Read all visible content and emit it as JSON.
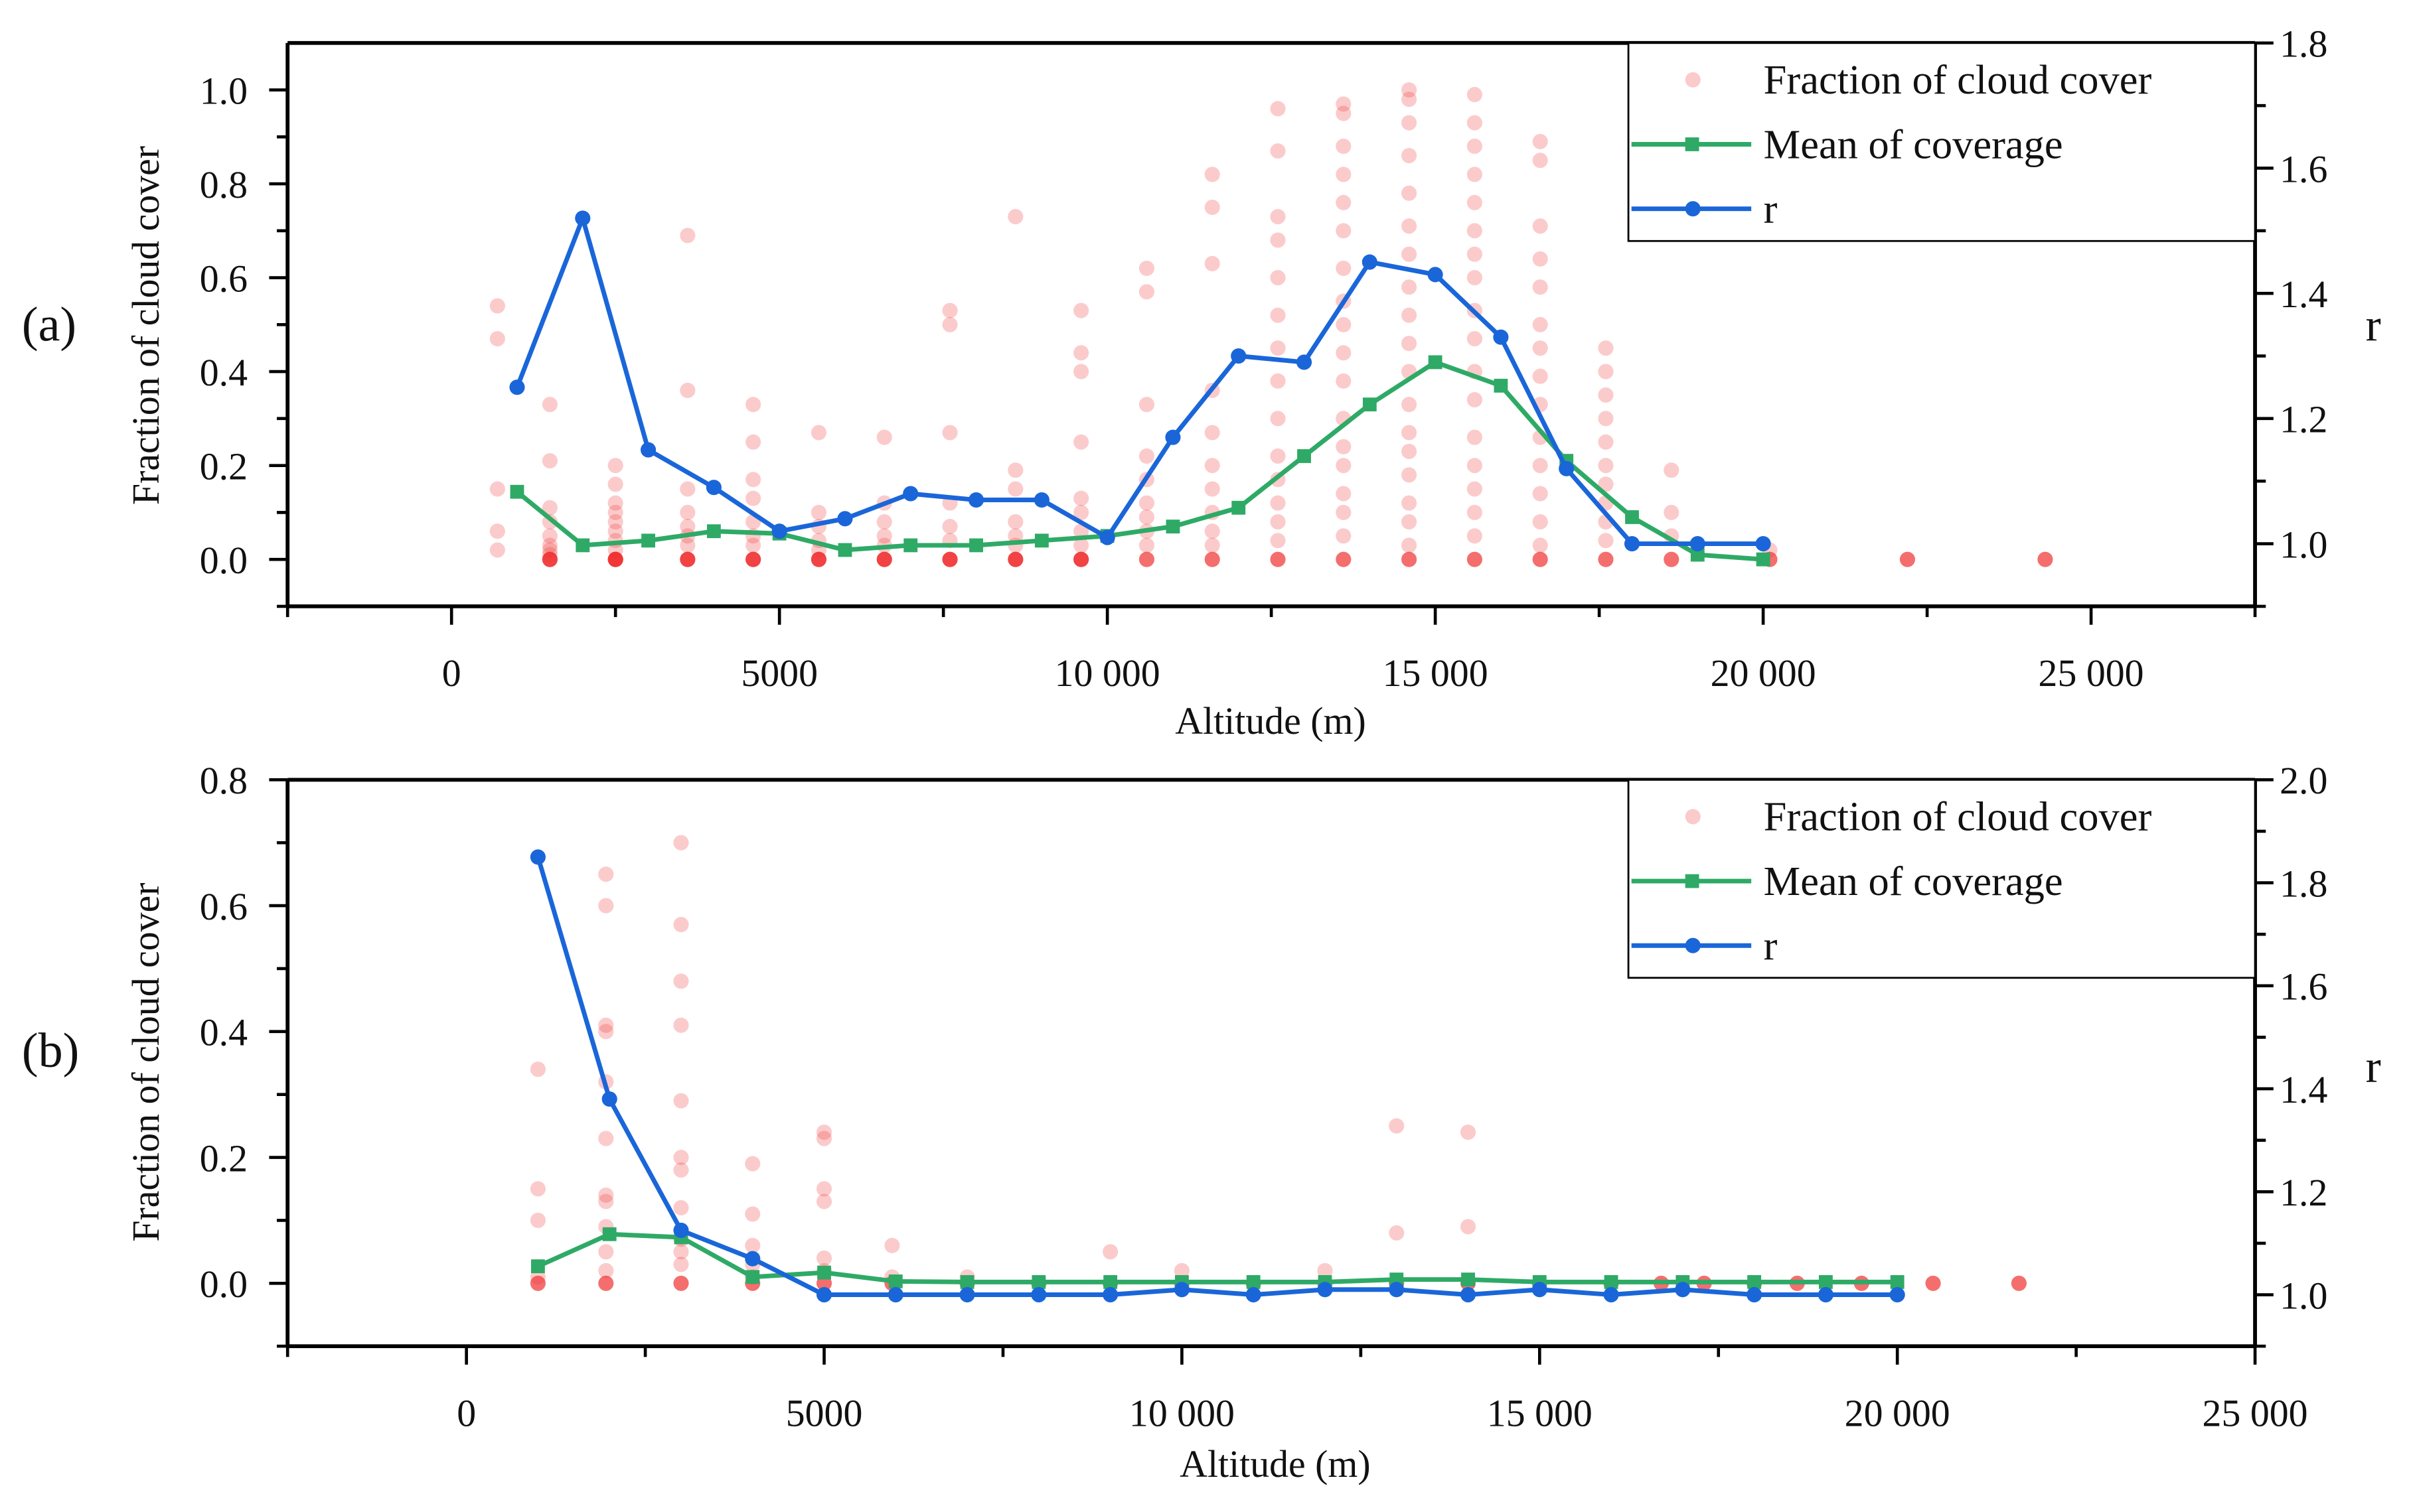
{
  "chart_data": [
    {
      "type": "scatter",
      "panel_label": "(a)",
      "xlabel": "Altitude (m)",
      "ylabel": "Fraction of cloud cover",
      "y2label": "r",
      "xlim": [
        -2500,
        27500
      ],
      "ylim": [
        -0.1,
        1.1
      ],
      "y2lim": [
        0.9,
        1.8
      ],
      "xticks": [
        0,
        5000,
        10000,
        15000,
        20000,
        25000
      ],
      "xtick_labels": [
        "0",
        "5000",
        "10 000",
        "15 000",
        "20 000",
        "25 000"
      ],
      "yticks": [
        0.0,
        0.2,
        0.4,
        0.6,
        0.8,
        1.0
      ],
      "ytick_labels": [
        "0.0",
        "0.2",
        "0.4",
        "0.6",
        "0.8",
        "1.0"
      ],
      "y2ticks": [
        1.0,
        1.2,
        1.4,
        1.6,
        1.8
      ],
      "y2tick_labels": [
        "1.0",
        "1.2",
        "1.4",
        "1.6",
        "1.8"
      ],
      "legend": [
        "Fraction of cloud cover",
        "Mean of coverage",
        "r"
      ],
      "legend_position": "top-right",
      "colors": {
        "scatter": "#f03030",
        "mean": "#2eaa66",
        "r": "#1a66d9"
      },
      "scatter": [
        {
          "x": 700,
          "values": [
            0.54,
            0.47,
            0.15,
            0.06,
            0.02
          ]
        },
        {
          "x": 1500,
          "values": [
            0.33,
            0.21,
            0.11,
            0.08,
            0.05,
            0.03,
            0.02,
            0.01,
            0,
            0
          ]
        },
        {
          "x": 2500,
          "values": [
            0.2,
            0.16,
            0.12,
            0.1,
            0.08,
            0.06,
            0.04,
            0.02,
            0,
            0,
            0
          ]
        },
        {
          "x": 3600,
          "values": [
            0.69,
            0.36,
            0.15,
            0.1,
            0.07,
            0.05,
            0.03,
            0,
            0
          ]
        },
        {
          "x": 4600,
          "values": [
            0.33,
            0.25,
            0.17,
            0.13,
            0.08,
            0.05,
            0.03,
            0,
            0
          ]
        },
        {
          "x": 5600,
          "values": [
            0.27,
            0.1,
            0.07,
            0.04,
            0.02,
            0,
            0
          ]
        },
        {
          "x": 6600,
          "values": [
            0.26,
            0.12,
            0.08,
            0.05,
            0.03,
            0,
            0
          ]
        },
        {
          "x": 7600,
          "values": [
            0.53,
            0.5,
            0.27,
            0.12,
            0.07,
            0.04,
            0,
            0
          ]
        },
        {
          "x": 8600,
          "values": [
            0.73,
            0.19,
            0.15,
            0.08,
            0.05,
            0.03,
            0,
            0
          ]
        },
        {
          "x": 9600,
          "values": [
            0.53,
            0.44,
            0.4,
            0.25,
            0.13,
            0.1,
            0.06,
            0.03,
            0,
            0
          ]
        },
        {
          "x": 10600,
          "values": [
            0.62,
            0.57,
            0.33,
            0.22,
            0.17,
            0.12,
            0.09,
            0.06,
            0.03,
            0
          ]
        },
        {
          "x": 11600,
          "values": [
            0.82,
            0.75,
            0.63,
            0.36,
            0.27,
            0.2,
            0.15,
            0.1,
            0.06,
            0.03,
            0
          ]
        },
        {
          "x": 12600,
          "values": [
            0.96,
            0.87,
            0.73,
            0.68,
            0.6,
            0.52,
            0.45,
            0.38,
            0.3,
            0.22,
            0.17,
            0.12,
            0.08,
            0.04,
            0
          ]
        },
        {
          "x": 13600,
          "values": [
            0.97,
            0.95,
            0.88,
            0.82,
            0.76,
            0.7,
            0.62,
            0.55,
            0.5,
            0.44,
            0.38,
            0.3,
            0.24,
            0.2,
            0.14,
            0.1,
            0.05,
            0
          ]
        },
        {
          "x": 14600,
          "values": [
            1.0,
            0.98,
            0.93,
            0.86,
            0.78,
            0.71,
            0.65,
            0.58,
            0.52,
            0.46,
            0.4,
            0.33,
            0.27,
            0.23,
            0.18,
            0.12,
            0.08,
            0.03,
            0
          ]
        },
        {
          "x": 15600,
          "values": [
            0.99,
            0.93,
            0.88,
            0.82,
            0.76,
            0.7,
            0.65,
            0.6,
            0.53,
            0.47,
            0.4,
            0.34,
            0.26,
            0.2,
            0.15,
            0.1,
            0.05,
            0
          ]
        },
        {
          "x": 16600,
          "values": [
            0.89,
            0.85,
            0.71,
            0.64,
            0.58,
            0.5,
            0.45,
            0.39,
            0.33,
            0.26,
            0.2,
            0.14,
            0.08,
            0.03,
            0
          ]
        },
        {
          "x": 17600,
          "values": [
            0.45,
            0.4,
            0.35,
            0.3,
            0.25,
            0.2,
            0.16,
            0.12,
            0.08,
            0.04,
            0
          ]
        },
        {
          "x": 18600,
          "values": [
            0.19,
            0.1,
            0.05,
            0
          ]
        },
        {
          "x": 20100,
          "values": [
            0.02,
            0
          ]
        },
        {
          "x": 22200,
          "values": [
            0
          ]
        },
        {
          "x": 24300,
          "values": [
            0
          ]
        }
      ],
      "x": [
        1000,
        2000,
        3000,
        4000,
        5000,
        6000,
        7000,
        8000,
        9000,
        10000,
        11000,
        12000,
        13000,
        14000,
        15000,
        16000,
        17000,
        18000,
        19000,
        20000
      ],
      "series": [
        {
          "name": "Mean of coverage",
          "axis": "left",
          "values": [
            0.144,
            0.03,
            0.04,
            0.06,
            0.055,
            0.02,
            0.03,
            0.03,
            0.04,
            0.05,
            0.07,
            0.11,
            0.22,
            0.33,
            0.42,
            0.37,
            0.21,
            0.09,
            0.01,
            0.0
          ]
        },
        {
          "name": "r",
          "axis": "right",
          "values": [
            1.25,
            1.52,
            1.15,
            1.09,
            1.02,
            1.04,
            1.08,
            1.07,
            1.07,
            1.01,
            1.17,
            1.3,
            1.29,
            1.45,
            1.43,
            1.33,
            1.12,
            1.0,
            1.0,
            1.0
          ]
        }
      ]
    },
    {
      "type": "scatter",
      "panel_label": "(b)",
      "xlabel": "Altitude (m)",
      "ylabel": "Fraction of cloud cover",
      "y2label": "r",
      "xlim": [
        -2500,
        25000
      ],
      "ylim": [
        -0.1,
        0.8
      ],
      "y2lim": [
        0.9,
        2.0
      ],
      "xticks": [
        0,
        5000,
        10000,
        15000,
        20000,
        25000
      ],
      "xtick_labels": [
        "0",
        "5000",
        "10 000",
        "15 000",
        "20 000",
        "25 000"
      ],
      "yticks": [
        0.0,
        0.2,
        0.4,
        0.6,
        0.8
      ],
      "ytick_labels": [
        "0.0",
        "0.2",
        "0.4",
        "0.6",
        "0.8"
      ],
      "y2ticks": [
        1.0,
        1.2,
        1.4,
        1.6,
        1.8,
        2.0
      ],
      "y2tick_labels": [
        "1.0",
        "1.2",
        "1.4",
        "1.6",
        "1.8",
        "2.0"
      ],
      "legend": [
        "Fraction of cloud cover",
        "Mean of coverage",
        "r"
      ],
      "legend_position": "top-right",
      "colors": {
        "scatter": "#f03030",
        "mean": "#2eaa66",
        "r": "#1a66d9"
      },
      "scatter": [
        {
          "x": 1000,
          "values": [
            0.34,
            0.15,
            0.1,
            0.01,
            0
          ]
        },
        {
          "x": 1950,
          "values": [
            0.65,
            0.6,
            0.41,
            0.4,
            0.32,
            0.23,
            0.14,
            0.13,
            0.09,
            0.05,
            0.02,
            0
          ]
        },
        {
          "x": 3000,
          "values": [
            0.7,
            0.57,
            0.48,
            0.41,
            0.29,
            0.2,
            0.18,
            0.12,
            0.07,
            0.05,
            0.03,
            0
          ]
        },
        {
          "x": 4000,
          "values": [
            0.19,
            0.11,
            0.06,
            0.03,
            0.01,
            0
          ]
        },
        {
          "x": 5000,
          "values": [
            0.24,
            0.23,
            0.15,
            0.13,
            0.04,
            0.02,
            0
          ]
        },
        {
          "x": 5950,
          "values": [
            0.06,
            0.01,
            0
          ]
        },
        {
          "x": 7000,
          "values": [
            0.01,
            0
          ]
        },
        {
          "x": 8000,
          "values": [
            0
          ]
        },
        {
          "x": 9000,
          "values": [
            0.05,
            0
          ]
        },
        {
          "x": 10000,
          "values": [
            0.02,
            0
          ]
        },
        {
          "x": 11000,
          "values": [
            0
          ]
        },
        {
          "x": 12000,
          "values": [
            0.02,
            0
          ]
        },
        {
          "x": 13000,
          "values": [
            0.25,
            0.08,
            0
          ]
        },
        {
          "x": 14000,
          "values": [
            0.24,
            0.09,
            0
          ]
        },
        {
          "x": 15000,
          "values": [
            0
          ]
        },
        {
          "x": 16000,
          "values": [
            0
          ]
        },
        {
          "x": 16700,
          "values": [
            0
          ]
        },
        {
          "x": 17300,
          "values": [
            0
          ]
        },
        {
          "x": 18000,
          "values": [
            0
          ]
        },
        {
          "x": 18600,
          "values": [
            0
          ]
        },
        {
          "x": 19500,
          "values": [
            0
          ]
        },
        {
          "x": 20500,
          "values": [
            0
          ]
        },
        {
          "x": 21700,
          "values": [
            0
          ]
        }
      ],
      "x": [
        1000,
        2000,
        3000,
        4000,
        5000,
        6000,
        7000,
        8000,
        9000,
        10000,
        11000,
        12000,
        13000,
        14000,
        15000,
        16000,
        17000,
        18000,
        19000,
        20000
      ],
      "series": [
        {
          "name": "Mean of coverage",
          "axis": "left",
          "values": [
            0.027,
            0.078,
            0.073,
            0.01,
            0.017,
            0.003,
            0.002,
            0.002,
            0.002,
            0.002,
            0.002,
            0.002,
            0.006,
            0.006,
            0.002,
            0.002,
            0.002,
            0.002,
            0.002,
            0.002
          ]
        },
        {
          "name": "r",
          "axis": "right",
          "values": [
            1.85,
            1.38,
            1.125,
            1.07,
            1.0,
            1.0,
            1.0,
            1.0,
            1.0,
            1.01,
            1.0,
            1.01,
            1.01,
            1.0,
            1.01,
            1.0,
            1.01,
            1.0,
            1.0,
            1.0
          ]
        }
      ]
    }
  ]
}
